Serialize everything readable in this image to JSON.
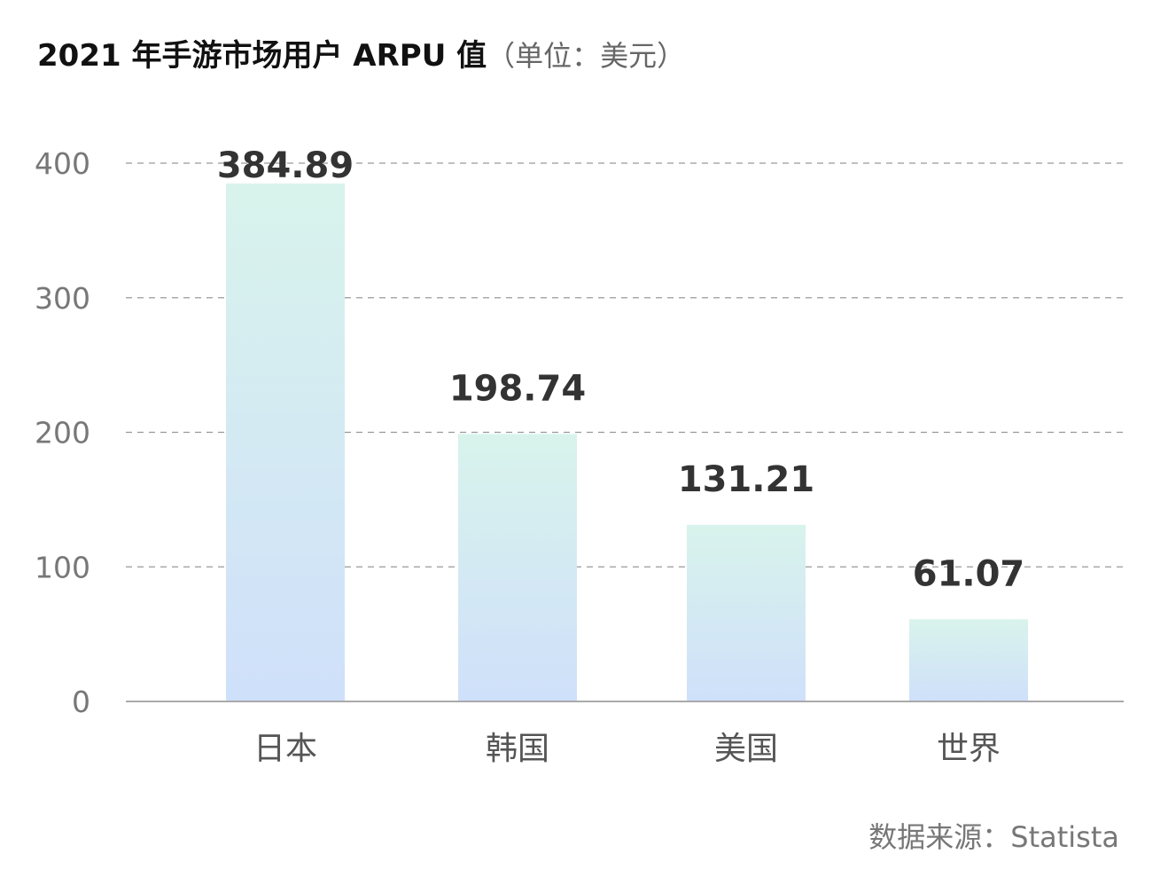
{
  "colors": {
    "title": "#111111",
    "unit": "#666666",
    "tick": "#777777",
    "grid": "#999999",
    "axis": "#aaaaaa",
    "category": "#555555",
    "data_label": "#333333",
    "source": "#777777",
    "bar_top": "#d8f3ec",
    "bar_bottom": "#cfe0fa"
  },
  "chart_data": {
    "type": "bar",
    "title": "2021 年手游市场用户 ARPU 值",
    "unit": "（单位：美元）",
    "categories": [
      "日本",
      "韩国",
      "美国",
      "世界"
    ],
    "values": [
      384.89,
      198.74,
      131.21,
      61.07
    ],
    "value_labels": [
      "384.89",
      "198.74",
      "131.21",
      "61.07"
    ],
    "yticks": [
      "0",
      "100",
      "200",
      "300",
      "400"
    ],
    "ylim": [
      0,
      400
    ],
    "grid": true,
    "xlabel": "",
    "ylabel": ""
  },
  "source": "数据来源：Statista"
}
